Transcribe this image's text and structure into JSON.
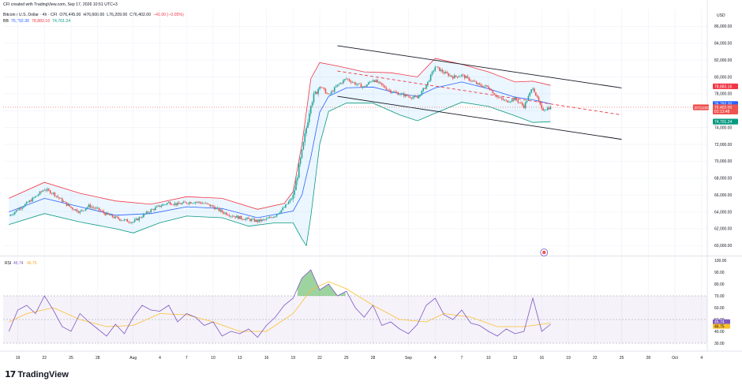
{
  "credit": "CFI created with TradingView.com, Sep 17, 2026 10:51 UTC+3",
  "symbol_line": {
    "name": "Bitcoin / U.S. Dollar · 4h · CFI",
    "o": "O76,445.00",
    "h": "H76,608.00",
    "l": "L76,209.00",
    "c": "C76,402.00",
    "chg": "−41.00 (−0.05%)"
  },
  "bb_line": {
    "label": "BB",
    "basis": "76,792.30",
    "upper": "78,883.16",
    "lower": "74,701.24"
  },
  "currency": "USD",
  "brand": {
    "logo": "17",
    "name": "TradingView"
  },
  "colors": {
    "up": "#26a69a",
    "down": "#ef5350",
    "upper_band": "#f23645",
    "lower_band": "#089981",
    "basis": "#2962ff",
    "band_fill": "#2196f3",
    "rsi": "#7e57c2",
    "rsi_ma": "#fbc02d",
    "channel": "#131722",
    "mid_dash": "#f23645",
    "grid": "#f0f3fa"
  },
  "chart_data": [
    {
      "type": "candlestick",
      "instrument": "BTCUSD",
      "interval": "4h",
      "ylim": [
        59000,
        88000
      ],
      "y_ticks": [
        "60,000.00",
        "62,000.00",
        "64,000.00",
        "66,000.00",
        "68,000.00",
        "70,000.00",
        "72,000.00",
        "74,000.00",
        "76,000.00",
        "78,000.00",
        "80,000.00",
        "82,000.00",
        "84,000.00",
        "86,000.00"
      ],
      "x_ticks": [
        "19",
        "22",
        "25",
        "28",
        "Aug",
        "4",
        "7",
        "10",
        "13",
        "16",
        "19",
        "22",
        "25",
        "28",
        "Sep",
        "4",
        "7",
        "10",
        "13",
        "16",
        "19",
        "22",
        "25",
        "28",
        "Oct",
        "4"
      ],
      "x_dates": [
        "Jul 19",
        "Jul 22",
        "Jul 25",
        "Jul 28",
        "Aug 1",
        "Aug 4",
        "Aug 7",
        "Aug 10",
        "Aug 13",
        "Aug 16",
        "Aug 19",
        "Aug 22",
        "Aug 25",
        "Aug 28",
        "Sep 1",
        "Sep 4",
        "Sep 7",
        "Sep 10",
        "Sep 13",
        "Sep 16",
        "Sep 19",
        "Sep 22",
        "Sep 25",
        "Sep 28",
        "Oct 1",
        "Oct 4"
      ],
      "price_path": [
        [
          "Jul 18",
          63500
        ],
        [
          "Jul 19",
          64300
        ],
        [
          "Jul 20",
          65000
        ],
        [
          "Jul 21",
          65800
        ],
        [
          "Jul 22",
          66700
        ],
        [
          "Jul 23",
          66200
        ],
        [
          "Jul 24",
          65300
        ],
        [
          "Jul 25",
          64500
        ],
        [
          "Jul 26",
          64000
        ],
        [
          "Jul 27",
          64700
        ],
        [
          "Jul 28",
          64300
        ],
        [
          "Jul 29",
          63700
        ],
        [
          "Jul 30",
          63300
        ],
        [
          "Jul 31",
          63000
        ],
        [
          "Aug 1",
          62800
        ],
        [
          "Aug 2",
          63500
        ],
        [
          "Aug 3",
          64200
        ],
        [
          "Aug 4",
          64700
        ],
        [
          "Aug 5",
          65100
        ],
        [
          "Aug 6",
          64900
        ],
        [
          "Aug 7",
          65100
        ],
        [
          "Aug 8",
          65200
        ],
        [
          "Aug 9",
          65000
        ],
        [
          "Aug 10",
          64600
        ],
        [
          "Aug 11",
          64000
        ],
        [
          "Aug 12",
          63600
        ],
        [
          "Aug 13",
          63300
        ],
        [
          "Aug 14",
          63100
        ],
        [
          "Aug 15",
          62900
        ],
        [
          "Aug 16",
          63100
        ],
        [
          "Aug 17",
          63600
        ],
        [
          "Aug 18",
          64500
        ],
        [
          "Aug 19",
          65800
        ],
        [
          "Aug 20",
          71000
        ],
        [
          "Aug 21",
          77000
        ],
        [
          "Aug 22",
          79000
        ],
        [
          "Aug 23",
          77800
        ],
        [
          "Aug 24",
          79000
        ],
        [
          "Aug 25",
          79800
        ],
        [
          "Aug 26",
          79200
        ],
        [
          "Aug 27",
          78800
        ],
        [
          "Aug 28",
          79700
        ],
        [
          "Aug 29",
          79000
        ],
        [
          "Aug 30",
          78300
        ],
        [
          "Aug 31",
          78000
        ],
        [
          "Sep 1",
          77700
        ],
        [
          "Sep 2",
          77500
        ],
        [
          "Sep 3",
          79000
        ],
        [
          "Sep 4",
          81200
        ],
        [
          "Sep 5",
          80500
        ],
        [
          "Sep 6",
          80000
        ],
        [
          "Sep 7",
          80200
        ],
        [
          "Sep 8",
          79600
        ],
        [
          "Sep 9",
          79000
        ],
        [
          "Sep 10",
          78800
        ],
        [
          "Sep 11",
          77600
        ],
        [
          "Sep 12",
          77100
        ],
        [
          "Sep 13",
          77400
        ],
        [
          "Sep 14",
          76500
        ],
        [
          "Sep 15",
          78800
        ],
        [
          "Sep 16",
          76100
        ],
        [
          "Sep 17",
          76400
        ]
      ],
      "bb_upper_path": [
        [
          "Jul 18",
          65600
        ],
        [
          "Jul 22",
          67500
        ],
        [
          "Jul 26",
          66200
        ],
        [
          "Jul 30",
          65300
        ],
        [
          "Aug 3",
          64900
        ],
        [
          "Aug 7",
          65800
        ],
        [
          "Aug 11",
          65600
        ],
        [
          "Aug 15",
          64300
        ],
        [
          "Aug 18",
          65000
        ],
        [
          "Aug 19",
          66400
        ],
        [
          "Aug 20",
          72000
        ],
        [
          "Aug 21",
          79800
        ],
        [
          "Aug 22",
          81700
        ],
        [
          "Aug 24",
          81300
        ],
        [
          "Aug 27",
          80600
        ],
        [
          "Aug 30",
          80500
        ],
        [
          "Sep 2",
          80000
        ],
        [
          "Sep 4",
          82200
        ],
        [
          "Sep 7",
          81500
        ],
        [
          "Sep 10",
          80600
        ],
        [
          "Sep 13",
          79400
        ],
        [
          "Sep 15",
          79500
        ],
        [
          "Sep 17",
          79000
        ]
      ],
      "bb_lower_path": [
        [
          "Jul 18",
          62500
        ],
        [
          "Jul 22",
          63800
        ],
        [
          "Jul 26",
          62800
        ],
        [
          "Jul 30",
          62000
        ],
        [
          "Aug 1",
          61500
        ],
        [
          "Aug 4",
          62700
        ],
        [
          "Aug 7",
          63500
        ],
        [
          "Aug 11",
          63300
        ],
        [
          "Aug 14",
          62300
        ],
        [
          "Aug 17",
          62700
        ],
        [
          "Aug 19",
          62700
        ],
        [
          "Aug 20",
          60800
        ],
        [
          "Aug 20 12:00",
          60000
        ],
        [
          "Aug 21",
          63500
        ],
        [
          "Aug 22",
          72000
        ],
        [
          "Aug 23",
          75900
        ],
        [
          "Aug 25",
          76900
        ],
        [
          "Aug 28",
          76900
        ],
        [
          "Aug 31",
          75500
        ],
        [
          "Sep 2",
          74800
        ],
        [
          "Sep 4",
          75700
        ],
        [
          "Sep 7",
          77000
        ],
        [
          "Sep 10",
          76500
        ],
        [
          "Sep 13",
          75400
        ],
        [
          "Sep 15",
          74600
        ],
        [
          "Sep 17",
          74700
        ]
      ],
      "bb_basis_path": [
        [
          "Jul 18",
          64000
        ],
        [
          "Jul 22",
          65600
        ],
        [
          "Jul 26",
          64600
        ],
        [
          "Jul 30",
          63600
        ],
        [
          "Aug 3",
          63800
        ],
        [
          "Aug 7",
          64600
        ],
        [
          "Aug 11",
          64400
        ],
        [
          "Aug 15",
          63300
        ],
        [
          "Aug 19",
          64100
        ],
        [
          "Aug 20",
          66000
        ],
        [
          "Aug 21",
          70500
        ],
        [
          "Aug 22",
          75800
        ],
        [
          "Aug 23",
          77700
        ],
        [
          "Aug 25",
          78700
        ],
        [
          "Aug 28",
          78800
        ],
        [
          "Aug 31",
          78000
        ],
        [
          "Sep 2",
          77700
        ],
        [
          "Sep 4",
          78700
        ],
        [
          "Sep 7",
          79400
        ],
        [
          "Sep 10",
          78600
        ],
        [
          "Sep 13",
          77600
        ],
        [
          "Sep 15",
          77300
        ],
        [
          "Sep 17",
          76800
        ]
      ],
      "channel": {
        "upper": [
          [
            "Aug 24",
            83700
          ],
          [
            "Sep 25",
            78700
          ]
        ],
        "lower": [
          [
            "Aug 24",
            77700
          ],
          [
            "Sep 25",
            72600
          ]
        ],
        "middle": [
          [
            "Aug 24",
            80700
          ],
          [
            "Sep 25",
            75500
          ]
        ]
      },
      "price_labels": [
        {
          "text": "78,883.16",
          "value": 78883.16,
          "color": "#f23645"
        },
        {
          "text": "76,792.30",
          "value": 76792.3,
          "color": "#2962ff"
        },
        {
          "text": "76,402.00",
          "value": 76402.0,
          "color": "#ef5350"
        },
        {
          "text": "01:13:48",
          "value": 75900,
          "color": "#ef5350"
        },
        {
          "text": "74,701.24",
          "value": 74701.24,
          "color": "#089981"
        }
      ],
      "symbol_tag": "BTCUSD",
      "last_price": 76402.0
    },
    {
      "type": "line",
      "title": "RSI",
      "values_text": [
        "45.74",
        "46.75"
      ],
      "ylim": [
        28,
        102
      ],
      "y_ticks": [
        "100.00",
        "90.00",
        "80.00",
        "70.00",
        "60.00",
        "50.00",
        "40.00",
        "30.00"
      ],
      "overbought": 70,
      "oversold": 30,
      "midline": 50,
      "series": [
        {
          "name": "RSI",
          "points": [
            [
              "Jul 18",
              40
            ],
            [
              "Jul 19",
              58
            ],
            [
              "Jul 20",
              62
            ],
            [
              "Jul 21",
              55
            ],
            [
              "Jul 22",
              70
            ],
            [
              "Jul 23",
              58
            ],
            [
              "Jul 24",
              44
            ],
            [
              "Jul 25",
              40
            ],
            [
              "Jul 26",
              55
            ],
            [
              "Jul 27",
              48
            ],
            [
              "Jul 28",
              42
            ],
            [
              "Jul 29",
              36
            ],
            [
              "Jul 30",
              46
            ],
            [
              "Jul 31",
              38
            ],
            [
              "Aug 1",
              52
            ],
            [
              "Aug 2",
              62
            ],
            [
              "Aug 3",
              58
            ],
            [
              "Aug 4",
              57
            ],
            [
              "Aug 5",
              62
            ],
            [
              "Aug 6",
              48
            ],
            [
              "Aug 7",
              55
            ],
            [
              "Aug 8",
              52
            ],
            [
              "Aug 9",
              45
            ],
            [
              "Aug 10",
              48
            ],
            [
              "Aug 11",
              36
            ],
            [
              "Aug 12",
              40
            ],
            [
              "Aug 13",
              38
            ],
            [
              "Aug 14",
              42
            ],
            [
              "Aug 15",
              35
            ],
            [
              "Aug 16",
              45
            ],
            [
              "Aug 17",
              52
            ],
            [
              "Aug 18",
              62
            ],
            [
              "Aug 19",
              68
            ],
            [
              "Aug 20",
              85
            ],
            [
              "Aug 21",
              92
            ],
            [
              "Aug 22",
              75
            ],
            [
              "Aug 23",
              80
            ],
            [
              "Aug 24",
              70
            ],
            [
              "Aug 25",
              74
            ],
            [
              "Aug 26",
              60
            ],
            [
              "Aug 27",
              52
            ],
            [
              "Aug 28",
              62
            ],
            [
              "Aug 29",
              45
            ],
            [
              "Aug 30",
              48
            ],
            [
              "Aug 31",
              42
            ],
            [
              "Sep 1",
              38
            ],
            [
              "Sep 2",
              46
            ],
            [
              "Sep 3",
              62
            ],
            [
              "Sep 4",
              68
            ],
            [
              "Sep 5",
              54
            ],
            [
              "Sep 6",
              50
            ],
            [
              "Sep 7",
              58
            ],
            [
              "Sep 8",
              47
            ],
            [
              "Sep 9",
              45
            ],
            [
              "Sep 10",
              40
            ],
            [
              "Sep 11",
              36
            ],
            [
              "Sep 12",
              42
            ],
            [
              "Sep 13",
              38
            ],
            [
              "Sep 14",
              40
            ],
            [
              "Sep 15",
              68
            ],
            [
              "Sep 16",
              40
            ],
            [
              "Sep 17",
              46
            ]
          ]
        },
        {
          "name": "RSI-based MA",
          "points": [
            [
              "Jul 18",
              48
            ],
            [
              "Jul 20",
              55
            ],
            [
              "Jul 23",
              60
            ],
            [
              "Jul 26",
              50
            ],
            [
              "Jul 29",
              44
            ],
            [
              "Aug 1",
              45
            ],
            [
              "Aug 4",
              55
            ],
            [
              "Aug 7",
              54
            ],
            [
              "Aug 10",
              48
            ],
            [
              "Aug 13",
              40
            ],
            [
              "Aug 16",
              40
            ],
            [
              "Aug 19",
              55
            ],
            [
              "Aug 21",
              75
            ],
            [
              "Aug 23",
              82
            ],
            [
              "Aug 25",
              76
            ],
            [
              "Aug 28",
              62
            ],
            [
              "Aug 31",
              50
            ],
            [
              "Sep 3",
              48
            ],
            [
              "Sep 5",
              55
            ],
            [
              "Sep 8",
              52
            ],
            [
              "Sep 11",
              44
            ],
            [
              "Sep 14",
              44
            ],
            [
              "Sep 17",
              47
            ]
          ]
        }
      ]
    }
  ]
}
